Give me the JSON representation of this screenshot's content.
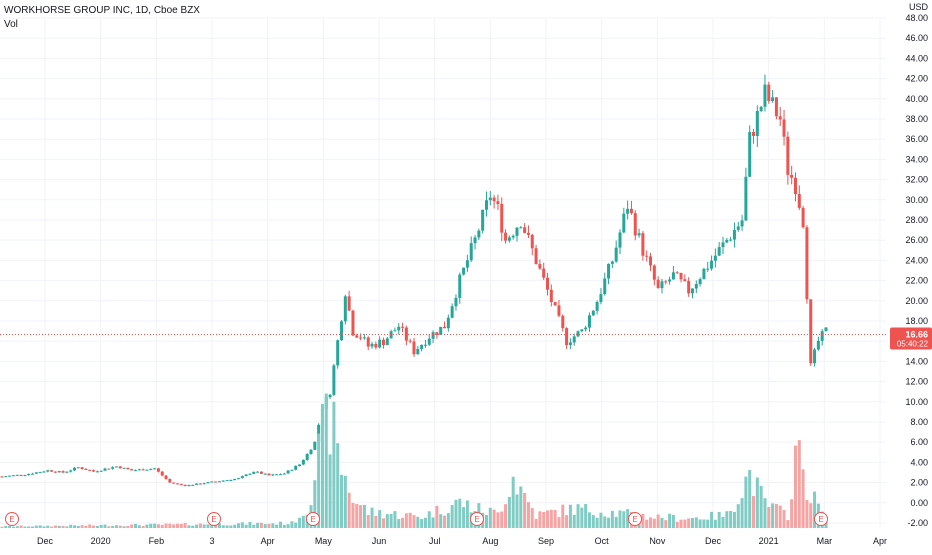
{
  "header": {
    "symbol": "WORKHORSE GROUP INC, 1D, Cboe BZX",
    "volume_label": "Vol"
  },
  "colors": {
    "up": "#26a69a",
    "down": "#ef5350",
    "vol_up": "#80cbc4",
    "vol_down": "#f6a3a3",
    "price_line": "#ef5350",
    "grid": "#f0f3fa"
  },
  "chart_data": {
    "type": "candlestick",
    "symbol": "WORKHORSE GROUP INC",
    "interval": "1D",
    "exchange": "Cboe BZX",
    "currency": "USD",
    "y_range": [
      -2.5,
      48
    ],
    "y_ticks": [
      "48.00",
      "46.00",
      "44.00",
      "42.00",
      "40.00",
      "38.00",
      "36.00",
      "34.00",
      "32.00",
      "30.00",
      "28.00",
      "26.00",
      "24.00",
      "22.00",
      "20.00",
      "18.00",
      "16.00",
      "14.00",
      "12.00",
      "10.00",
      "8.00",
      "6.00",
      "4.00",
      "2.00",
      "0.00",
      "-2.00"
    ],
    "x_labels": [
      "Dec",
      "2020",
      "Feb",
      "3",
      "Apr",
      "May",
      "Jun",
      "Jul",
      "Aug",
      "Sep",
      "Oct",
      "Nov",
      "Dec",
      "2021",
      "Mar",
      "Apr"
    ],
    "current_price": "16.66",
    "countdown": "05:40:22",
    "earnings_markers": [
      "E",
      "E",
      "E",
      "E",
      "E",
      "E"
    ],
    "price_path": [
      [
        0,
        2.6
      ],
      [
        6,
        2.8
      ],
      [
        12,
        3.2
      ],
      [
        16,
        3.0
      ],
      [
        20,
        3.5
      ],
      [
        24,
        3.1
      ],
      [
        30,
        3.6
      ],
      [
        34,
        3.2
      ],
      [
        40,
        3.4
      ],
      [
        44,
        2.0
      ],
      [
        48,
        1.7
      ],
      [
        56,
        2.1
      ],
      [
        62,
        2.4
      ],
      [
        66,
        3.1
      ],
      [
        70,
        2.7
      ],
      [
        74,
        2.9
      ],
      [
        78,
        3.8
      ],
      [
        80,
        4.8
      ],
      [
        82,
        6.0
      ],
      [
        84,
        9.5
      ],
      [
        86,
        11.0
      ],
      [
        88,
        16.0
      ],
      [
        90,
        21.0
      ],
      [
        92,
        17.0
      ],
      [
        94,
        16.5
      ],
      [
        96,
        15.5
      ],
      [
        100,
        16.0
      ],
      [
        104,
        17.5
      ],
      [
        108,
        15.0
      ],
      [
        112,
        16.5
      ],
      [
        116,
        17.5
      ],
      [
        120,
        22.0
      ],
      [
        124,
        26.0
      ],
      [
        128,
        30.5
      ],
      [
        130,
        29.0
      ],
      [
        132,
        26.0
      ],
      [
        136,
        28.0
      ],
      [
        140,
        24.0
      ],
      [
        144,
        20.0
      ],
      [
        148,
        16.0
      ],
      [
        152,
        17.0
      ],
      [
        156,
        20.0
      ],
      [
        160,
        24.0
      ],
      [
        164,
        29.5
      ],
      [
        168,
        25.0
      ],
      [
        172,
        21.0
      ],
      [
        176,
        22.5
      ],
      [
        180,
        21.0
      ],
      [
        182,
        22.0
      ],
      [
        186,
        24.0
      ],
      [
        190,
        26.0
      ],
      [
        194,
        28.0
      ],
      [
        196,
        36.0
      ],
      [
        200,
        40.5
      ],
      [
        204,
        38.0
      ],
      [
        206,
        33.0
      ],
      [
        208,
        31.5
      ],
      [
        210,
        28.0
      ],
      [
        212,
        13.5
      ],
      [
        214,
        16.0
      ],
      [
        216,
        17.0
      ]
    ],
    "volume_path": [
      [
        0,
        0.1
      ],
      [
        40,
        0.2
      ],
      [
        76,
        0.3
      ],
      [
        80,
        1.2
      ],
      [
        82,
        3.5
      ],
      [
        84,
        5.5
      ],
      [
        86,
        7.0
      ],
      [
        88,
        4.5
      ],
      [
        92,
        1.8
      ],
      [
        96,
        1.0
      ],
      [
        110,
        0.7
      ],
      [
        120,
        1.6
      ],
      [
        124,
        1.2
      ],
      [
        130,
        0.9
      ],
      [
        134,
        3.2
      ],
      [
        140,
        0.8
      ],
      [
        150,
        1.2
      ],
      [
        162,
        0.9
      ],
      [
        170,
        0.7
      ],
      [
        180,
        0.6
      ],
      [
        190,
        0.8
      ],
      [
        196,
        3.3
      ],
      [
        200,
        1.5
      ],
      [
        206,
        0.8
      ],
      [
        208,
        4.6
      ],
      [
        210,
        3.6
      ],
      [
        212,
        2.0
      ],
      [
        214,
        1.4
      ],
      [
        216,
        0.5
      ]
    ]
  }
}
